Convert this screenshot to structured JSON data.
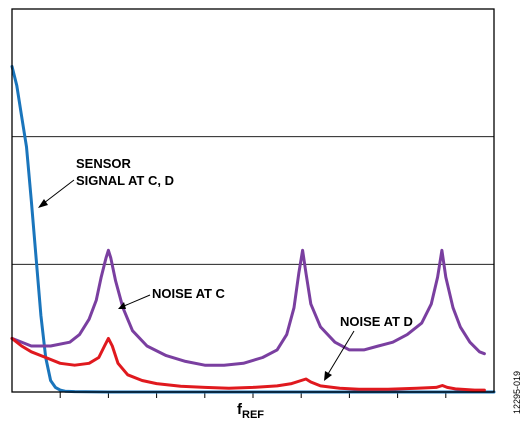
{
  "chart_data": {
    "type": "line",
    "xlabel": "f",
    "xlabel_sub": "REF",
    "figure_id": "12295-019",
    "grid": "horizontal",
    "x_ticks": 9,
    "series": [
      {
        "id": "sensor",
        "color": "#1a75bc",
        "points": [
          [
            0,
            0.85
          ],
          [
            1,
            0.8
          ],
          [
            2,
            0.72
          ],
          [
            3,
            0.64
          ],
          [
            4,
            0.5
          ],
          [
            5,
            0.35
          ],
          [
            6,
            0.2
          ],
          [
            7,
            0.09
          ],
          [
            8,
            0.03
          ],
          [
            9,
            0.012
          ],
          [
            10,
            0.005
          ],
          [
            11,
            0.002
          ],
          [
            13,
            0.001
          ],
          [
            20,
            0
          ],
          [
            100,
            0
          ]
        ]
      },
      {
        "id": "noise_c",
        "color": "#7a3fa0",
        "points": [
          [
            0,
            0.14
          ],
          [
            4,
            0.12
          ],
          [
            8,
            0.12
          ],
          [
            12,
            0.13
          ],
          [
            14,
            0.15
          ],
          [
            16,
            0.19
          ],
          [
            17.5,
            0.24
          ],
          [
            18.5,
            0.3
          ],
          [
            19.5,
            0.35
          ],
          [
            20,
            0.37
          ],
          [
            20.5,
            0.35
          ],
          [
            21.5,
            0.29
          ],
          [
            23,
            0.22
          ],
          [
            25,
            0.16
          ],
          [
            28,
            0.12
          ],
          [
            32,
            0.095
          ],
          [
            36,
            0.08
          ],
          [
            40,
            0.07
          ],
          [
            44,
            0.07
          ],
          [
            48,
            0.075
          ],
          [
            52,
            0.09
          ],
          [
            55,
            0.11
          ],
          [
            57,
            0.15
          ],
          [
            58.5,
            0.22
          ],
          [
            59.5,
            0.31
          ],
          [
            60.3,
            0.37
          ],
          [
            61,
            0.31
          ],
          [
            62,
            0.23
          ],
          [
            64,
            0.17
          ],
          [
            67,
            0.13
          ],
          [
            70,
            0.11
          ],
          [
            73,
            0.11
          ],
          [
            76,
            0.12
          ],
          [
            79,
            0.13
          ],
          [
            82,
            0.15
          ],
          [
            85,
            0.18
          ],
          [
            87,
            0.23
          ],
          [
            88.3,
            0.3
          ],
          [
            89.2,
            0.37
          ],
          [
            90,
            0.3
          ],
          [
            91.5,
            0.22
          ],
          [
            93,
            0.17
          ],
          [
            95,
            0.13
          ],
          [
            97,
            0.105
          ],
          [
            98,
            0.1
          ]
        ]
      },
      {
        "id": "noise_d",
        "color": "#e0191e",
        "points": [
          [
            0,
            0.14
          ],
          [
            2,
            0.12
          ],
          [
            4,
            0.105
          ],
          [
            7,
            0.09
          ],
          [
            10,
            0.075
          ],
          [
            13,
            0.07
          ],
          [
            16,
            0.075
          ],
          [
            18,
            0.09
          ],
          [
            19.2,
            0.12
          ],
          [
            20,
            0.14
          ],
          [
            20.8,
            0.12
          ],
          [
            22,
            0.075
          ],
          [
            24,
            0.045
          ],
          [
            27,
            0.03
          ],
          [
            30,
            0.022
          ],
          [
            35,
            0.015
          ],
          [
            40,
            0.012
          ],
          [
            45,
            0.01
          ],
          [
            50,
            0.012
          ],
          [
            55,
            0.016
          ],
          [
            58,
            0.022
          ],
          [
            60,
            0.03
          ],
          [
            61,
            0.034
          ],
          [
            62,
            0.026
          ],
          [
            64,
            0.016
          ],
          [
            68,
            0.01
          ],
          [
            72,
            0.007
          ],
          [
            78,
            0.007
          ],
          [
            84,
            0.01
          ],
          [
            88,
            0.012
          ],
          [
            89.3,
            0.017
          ],
          [
            90.3,
            0.012
          ],
          [
            92,
            0.008
          ],
          [
            96,
            0.005
          ],
          [
            98,
            0.005
          ]
        ]
      }
    ],
    "annotations": [
      {
        "id": "sensor",
        "lines": [
          "SENSOR",
          "SIGNAL AT C, D"
        ]
      },
      {
        "id": "noise_c",
        "lines": [
          "NOISE AT C"
        ]
      },
      {
        "id": "noise_d",
        "lines": [
          "NOISE AT D"
        ]
      }
    ]
  }
}
